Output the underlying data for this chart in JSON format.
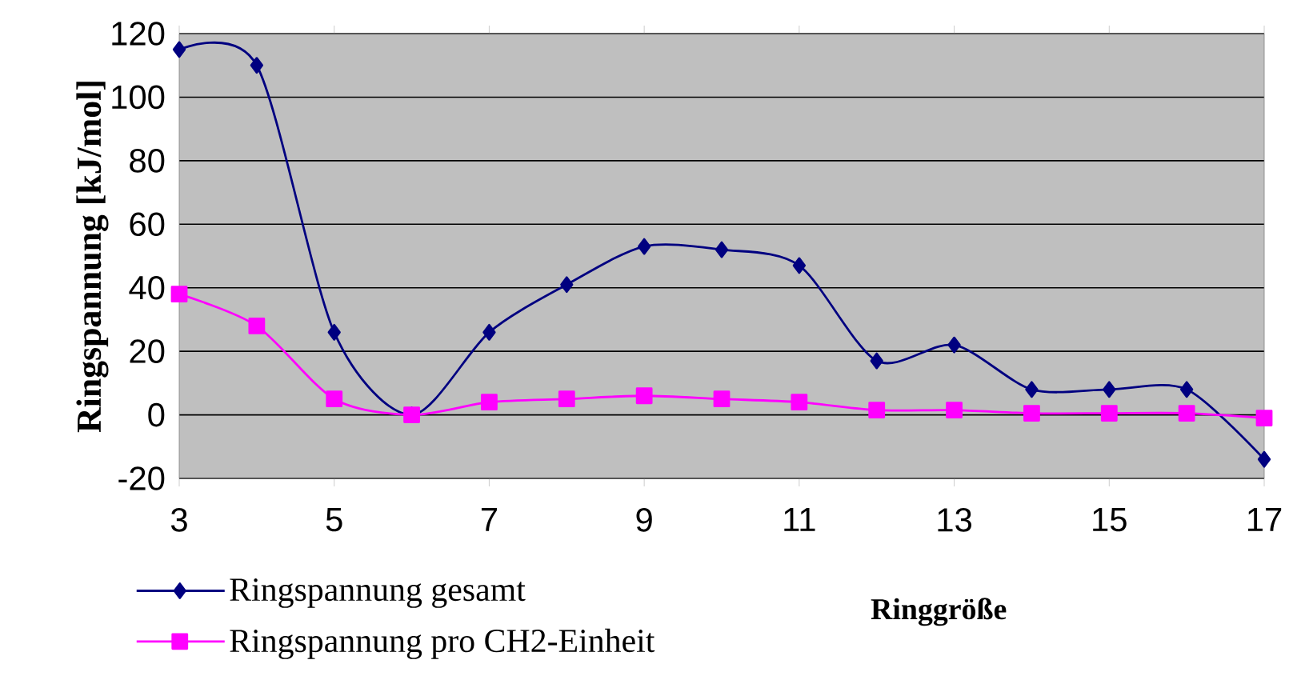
{
  "chart_data": {
    "type": "line",
    "xlabel": "Ringgröße",
    "ylabel": "Ringspannung [kJ/mol]",
    "x": [
      3,
      4,
      5,
      6,
      7,
      8,
      9,
      10,
      11,
      12,
      13,
      14,
      15,
      16,
      17
    ],
    "series": [
      {
        "name": "Ringspannung gesamt",
        "color": "#000080",
        "marker": "diamond",
        "values": [
          115,
          110,
          26,
          0,
          26,
          41,
          53,
          52,
          47,
          17,
          22,
          8,
          8,
          8,
          -14
        ]
      },
      {
        "name": "Ringspannung pro CH2-Einheit",
        "color": "#ff00ff",
        "marker": "square",
        "values": [
          38,
          28,
          5,
          0,
          4,
          5,
          6,
          5,
          4,
          1.5,
          1.5,
          0.5,
          0.5,
          0.5,
          -1
        ]
      }
    ],
    "xlim": [
      3,
      17
    ],
    "xticks": [
      3,
      5,
      7,
      9,
      11,
      13,
      15,
      17
    ],
    "ylim": [
      -20,
      120
    ],
    "yticks": [
      -20,
      0,
      20,
      40,
      60,
      80,
      100,
      120
    ],
    "grid": "y",
    "legend": "bottom left",
    "line_style": "solid"
  }
}
